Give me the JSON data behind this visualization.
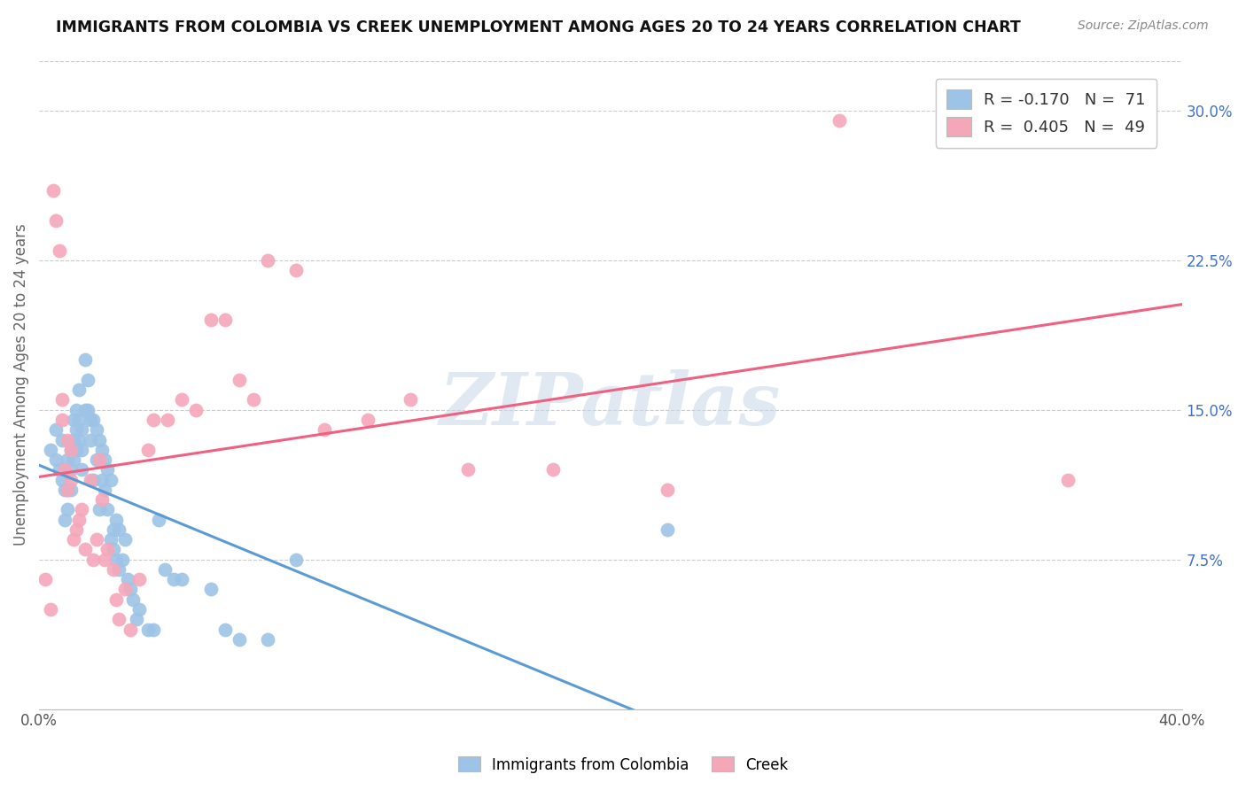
{
  "title": "IMMIGRANTS FROM COLOMBIA VS CREEK UNEMPLOYMENT AMONG AGES 20 TO 24 YEARS CORRELATION CHART",
  "source": "Source: ZipAtlas.com",
  "ylabel": "Unemployment Among Ages 20 to 24 years",
  "x_min": 0.0,
  "x_max": 0.4,
  "y_min": 0.0,
  "y_max": 0.325,
  "blue_color": "#9dc3e6",
  "pink_color": "#f4a7b9",
  "trendline_blue_solid": "#5b9bd5",
  "trendline_blue_dash": "#9dc3e6",
  "trendline_pink": "#f06080",
  "watermark": "ZIPatlas",
  "watermark_color": "#c8d8e8",
  "right_yticks": [
    0.075,
    0.15,
    0.225,
    0.3
  ],
  "right_yticklabels": [
    "7.5%",
    "15.0%",
    "22.5%",
    "30.0%"
  ],
  "legend_bottom": [
    "Immigrants from Colombia",
    "Creek"
  ],
  "legend_r1": "R = -0.170   N =  71",
  "legend_r2": "R =  0.405   N =  49",
  "colombia_x": [
    0.004,
    0.006,
    0.006,
    0.007,
    0.008,
    0.008,
    0.009,
    0.009,
    0.01,
    0.01,
    0.01,
    0.011,
    0.011,
    0.011,
    0.012,
    0.012,
    0.012,
    0.013,
    0.013,
    0.013,
    0.014,
    0.014,
    0.014,
    0.015,
    0.015,
    0.015,
    0.016,
    0.016,
    0.017,
    0.017,
    0.018,
    0.018,
    0.019,
    0.019,
    0.02,
    0.02,
    0.021,
    0.021,
    0.022,
    0.022,
    0.023,
    0.023,
    0.024,
    0.024,
    0.025,
    0.025,
    0.026,
    0.026,
    0.027,
    0.027,
    0.028,
    0.028,
    0.029,
    0.03,
    0.031,
    0.032,
    0.033,
    0.034,
    0.035,
    0.038,
    0.04,
    0.042,
    0.044,
    0.047,
    0.05,
    0.06,
    0.065,
    0.07,
    0.08,
    0.09,
    0.22
  ],
  "colombia_y": [
    0.13,
    0.14,
    0.125,
    0.12,
    0.135,
    0.115,
    0.095,
    0.11,
    0.125,
    0.11,
    0.1,
    0.13,
    0.12,
    0.11,
    0.145,
    0.135,
    0.125,
    0.15,
    0.14,
    0.13,
    0.16,
    0.145,
    0.135,
    0.14,
    0.13,
    0.12,
    0.175,
    0.15,
    0.165,
    0.15,
    0.145,
    0.135,
    0.145,
    0.115,
    0.14,
    0.125,
    0.135,
    0.1,
    0.13,
    0.115,
    0.125,
    0.11,
    0.12,
    0.1,
    0.115,
    0.085,
    0.09,
    0.08,
    0.095,
    0.075,
    0.09,
    0.07,
    0.075,
    0.085,
    0.065,
    0.06,
    0.055,
    0.045,
    0.05,
    0.04,
    0.04,
    0.095,
    0.07,
    0.065,
    0.065,
    0.06,
    0.04,
    0.035,
    0.035,
    0.075,
    0.09
  ],
  "creek_x": [
    0.002,
    0.004,
    0.005,
    0.006,
    0.007,
    0.008,
    0.008,
    0.009,
    0.01,
    0.01,
    0.011,
    0.011,
    0.012,
    0.013,
    0.014,
    0.015,
    0.016,
    0.018,
    0.019,
    0.02,
    0.021,
    0.022,
    0.023,
    0.024,
    0.026,
    0.027,
    0.028,
    0.03,
    0.032,
    0.035,
    0.038,
    0.04,
    0.045,
    0.05,
    0.055,
    0.06,
    0.065,
    0.07,
    0.075,
    0.08,
    0.09,
    0.1,
    0.115,
    0.13,
    0.15,
    0.18,
    0.22,
    0.28,
    0.36
  ],
  "creek_y": [
    0.065,
    0.05,
    0.26,
    0.245,
    0.23,
    0.155,
    0.145,
    0.12,
    0.135,
    0.11,
    0.13,
    0.115,
    0.085,
    0.09,
    0.095,
    0.1,
    0.08,
    0.115,
    0.075,
    0.085,
    0.125,
    0.105,
    0.075,
    0.08,
    0.07,
    0.055,
    0.045,
    0.06,
    0.04,
    0.065,
    0.13,
    0.145,
    0.145,
    0.155,
    0.15,
    0.195,
    0.195,
    0.165,
    0.155,
    0.225,
    0.22,
    0.14,
    0.145,
    0.155,
    0.12,
    0.12,
    0.11,
    0.295,
    0.115
  ]
}
